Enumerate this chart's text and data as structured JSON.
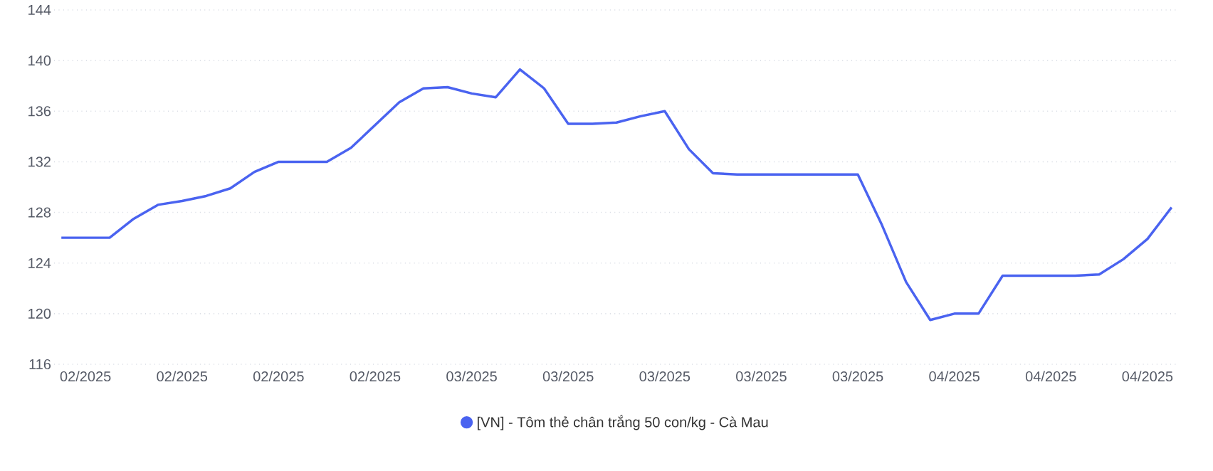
{
  "chart_data": {
    "type": "line",
    "ylim": [
      116,
      144
    ],
    "yticks": [
      116,
      120,
      124,
      128,
      132,
      136,
      140,
      144
    ],
    "categories": [
      null,
      "02/2025",
      null,
      null,
      null,
      "02/2025",
      null,
      null,
      null,
      "02/2025",
      null,
      null,
      null,
      "02/2025",
      null,
      null,
      null,
      "03/2025",
      null,
      null,
      null,
      "03/2025",
      null,
      null,
      null,
      "03/2025",
      null,
      null,
      null,
      "03/2025",
      null,
      null,
      null,
      "03/2025",
      null,
      null,
      null,
      "04/2025",
      null,
      null,
      null,
      "04/2025",
      null,
      null,
      null,
      "04/2025",
      null
    ],
    "grid": "y",
    "legend": "bottom",
    "line_style": "solid",
    "series": [
      {
        "name": "[VN] - Tôm thẻ chân trắng 50 con/kg - Cà Mau",
        "color": "#4a63f0",
        "values": [
          126,
          126,
          126,
          127.5,
          128.6,
          128.9,
          129.3,
          129.9,
          131.2,
          132,
          132,
          132,
          133.1,
          134.9,
          136.7,
          137.8,
          137.9,
          137.4,
          137.1,
          139.3,
          137.8,
          135,
          135,
          135.1,
          135.6,
          136,
          133,
          131.1,
          131,
          131,
          131,
          131,
          131,
          131,
          127,
          122.5,
          119.5,
          120,
          120,
          123,
          123,
          123,
          123,
          123.1,
          124.3,
          125.9,
          128.4
        ]
      }
    ]
  }
}
